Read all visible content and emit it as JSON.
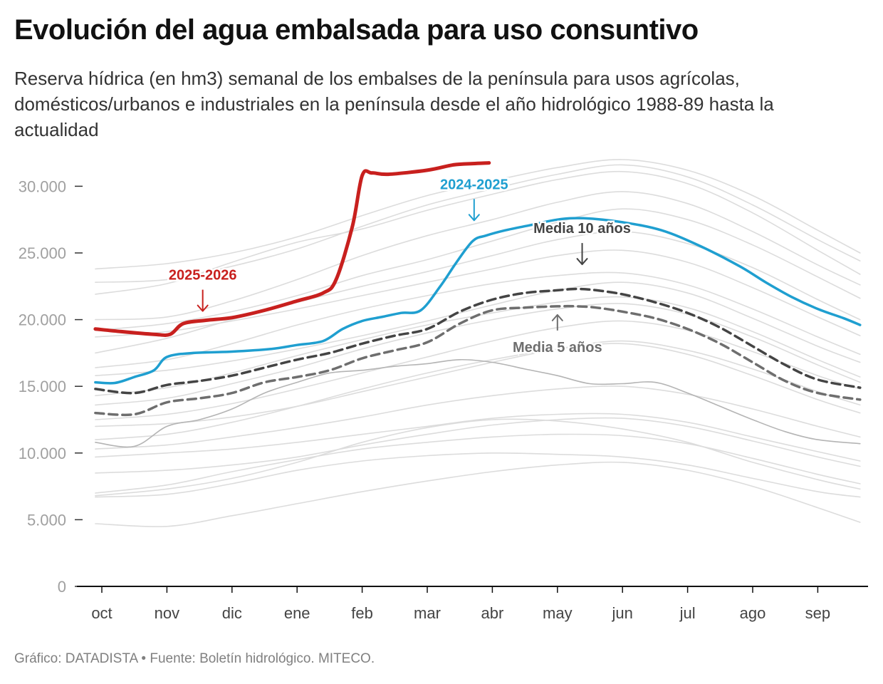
{
  "title": "Evolución del agua embalsada para uso consuntivo",
  "subtitle": "Reserva hídrica (en hm3) semanal de los embalses de la península para usos agrícolas, domésticos/urbanos e industriales en la península desde el año hidrológico 1988-89 hasta la actualidad",
  "source": "Gráfico: DATADISTA • Fuente: Boletín hidrológico. MITECO.",
  "colors": {
    "current": "#c8201e",
    "previous": "#1f9fd0",
    "media10": "#444444",
    "media5": "#6e6e6e",
    "history": "#dcdcdc",
    "history_dark": "#b4b4b4",
    "axis": "#111111"
  },
  "chart_data": {
    "type": "line",
    "title": "Evolución del agua embalsada para uso consuntivo",
    "xlabel": "",
    "ylabel": "",
    "x_unit": "meses del año hidrológico (oct = 0)",
    "xlim": [
      -0.2,
      11.65
    ],
    "ylim": [
      0,
      32000
    ],
    "yticks": [
      0,
      5000,
      10000,
      15000,
      20000,
      25000,
      30000
    ],
    "ytick_labels": [
      "0",
      "5.000",
      "10.000",
      "15.000",
      "20.000",
      "25.000",
      "30.000"
    ],
    "xticks": [
      0,
      1,
      2,
      3,
      4,
      5,
      6,
      7,
      8,
      9,
      10,
      11
    ],
    "xtick_labels": [
      "oct",
      "nov",
      "dic",
      "ene",
      "feb",
      "mar",
      "abr",
      "may",
      "jun",
      "jul",
      "ago",
      "sep"
    ],
    "grid": false,
    "legend": "none",
    "series": [
      {
        "name": "2025-2026",
        "role": "current",
        "x": [
          -0.1,
          0.3,
          0.8,
          1.05,
          1.25,
          1.6,
          2.0,
          2.5,
          3.0,
          3.4,
          3.6,
          3.85,
          4.0,
          4.15,
          4.4,
          5.0,
          5.4,
          5.7,
          5.95
        ],
        "y": [
          19300,
          19100,
          18900,
          18900,
          19700,
          19950,
          20150,
          20700,
          21400,
          22000,
          23000,
          27000,
          30800,
          31000,
          30900,
          31200,
          31600,
          31700,
          31750
        ]
      },
      {
        "name": "2024-2025",
        "role": "previous",
        "x": [
          -0.1,
          0.2,
          0.5,
          0.8,
          1.0,
          1.4,
          2.0,
          2.6,
          3.0,
          3.4,
          3.7,
          4.0,
          4.3,
          4.6,
          4.9,
          5.2,
          5.45,
          5.7,
          5.9,
          6.2,
          6.6,
          7.0,
          7.4,
          8.0,
          8.6,
          9.2,
          9.8,
          10.2,
          10.6,
          11.0,
          11.4,
          11.65
        ],
        "y": [
          15300,
          15250,
          15700,
          16200,
          17200,
          17500,
          17600,
          17800,
          18100,
          18400,
          19300,
          19900,
          20200,
          20500,
          20700,
          22500,
          24300,
          25900,
          26300,
          26700,
          27100,
          27500,
          27600,
          27300,
          26700,
          25500,
          24000,
          22800,
          21700,
          20800,
          20100,
          19600
        ]
      },
      {
        "name": "Media 10 años",
        "role": "media10",
        "x": [
          -0.1,
          0.5,
          1.0,
          1.5,
          2.0,
          2.5,
          3.0,
          3.5,
          4.0,
          4.5,
          5.0,
          5.5,
          6.0,
          6.5,
          7.0,
          7.3,
          7.6,
          8.0,
          8.5,
          9.0,
          9.5,
          10.0,
          10.5,
          11.0,
          11.65
        ],
        "y": [
          14800,
          14500,
          15100,
          15400,
          15800,
          16400,
          17000,
          17500,
          18200,
          18800,
          19300,
          20600,
          21500,
          22000,
          22200,
          22300,
          22200,
          21900,
          21300,
          20500,
          19400,
          18000,
          16600,
          15500,
          14900
        ]
      },
      {
        "name": "Media 5 años",
        "role": "media5",
        "x": [
          -0.1,
          0.5,
          1.0,
          1.5,
          2.0,
          2.5,
          3.0,
          3.5,
          4.0,
          4.5,
          5.0,
          5.5,
          6.0,
          6.5,
          7.0,
          7.3,
          7.6,
          8.0,
          8.5,
          9.0,
          9.5,
          10.0,
          10.5,
          11.0,
          11.65
        ],
        "y": [
          13000,
          12900,
          13800,
          14100,
          14500,
          15300,
          15700,
          16200,
          17100,
          17700,
          18300,
          19700,
          20700,
          20900,
          21000,
          21000,
          20900,
          20600,
          20100,
          19300,
          18200,
          16800,
          15400,
          14500,
          14000
        ]
      },
      {
        "role": "history",
        "x": [
          -0.1,
          1,
          2,
          3,
          4,
          5,
          6,
          7,
          8,
          9,
          10,
          11,
          11.65
        ],
        "y": [
          23800,
          24200,
          25000,
          26200,
          27800,
          29300,
          30400,
          31400,
          32000,
          31200,
          29300,
          26700,
          25000
        ]
      },
      {
        "role": "history",
        "x": [
          -0.1,
          1,
          2,
          3,
          4,
          5,
          6,
          7,
          8,
          9,
          10,
          11,
          11.65
        ],
        "y": [
          22800,
          23000,
          24000,
          25300,
          27000,
          28600,
          29800,
          30900,
          31600,
          30700,
          28600,
          26000,
          24400
        ]
      },
      {
        "role": "history",
        "x": [
          -0.1,
          1,
          2,
          3,
          4,
          5,
          6,
          7,
          8,
          9,
          10,
          11,
          11.65
        ],
        "y": [
          21900,
          22700,
          24300,
          25800,
          26800,
          28200,
          29400,
          30500,
          31100,
          30200,
          28000,
          25200,
          23400
        ]
      },
      {
        "role": "history",
        "x": [
          -0.1,
          1,
          2,
          3,
          4,
          5,
          6,
          7,
          8,
          9,
          10,
          11,
          11.65
        ],
        "y": [
          20000,
          20200,
          21400,
          23000,
          24800,
          26300,
          27500,
          28800,
          29600,
          28700,
          26600,
          24100,
          22600
        ]
      },
      {
        "role": "history",
        "x": [
          -0.1,
          1,
          2,
          3,
          4,
          5,
          6,
          7,
          8,
          9,
          10,
          11,
          11.65
        ],
        "y": [
          19200,
          19700,
          20600,
          21800,
          23300,
          24500,
          25900,
          27300,
          28300,
          27500,
          25600,
          23200,
          21600
        ]
      },
      {
        "role": "history",
        "x": [
          -0.1,
          1,
          2,
          3,
          4,
          5,
          6,
          7,
          8,
          9,
          10,
          11,
          11.65
        ],
        "y": [
          17500,
          18600,
          20000,
          21300,
          22500,
          23600,
          24800,
          26000,
          26600,
          25700,
          23900,
          21500,
          20000
        ]
      },
      {
        "role": "history",
        "x": [
          -0.1,
          1,
          2,
          3,
          4,
          5,
          6,
          7,
          8,
          9,
          10,
          11,
          11.65
        ],
        "y": [
          18700,
          19100,
          19900,
          20800,
          21800,
          22800,
          23800,
          24800,
          25200,
          24300,
          22400,
          20200,
          18800
        ]
      },
      {
        "role": "history",
        "x": [
          -0.1,
          1,
          2,
          3,
          4,
          5,
          6,
          7,
          8,
          9,
          10,
          11,
          11.65
        ],
        "y": [
          16400,
          17000,
          18200,
          19600,
          20800,
          21800,
          22700,
          23300,
          23500,
          22600,
          20800,
          18700,
          17400
        ]
      },
      {
        "role": "history",
        "x": [
          -0.1,
          1,
          2,
          3,
          4,
          5,
          6,
          7,
          8,
          9,
          10,
          11,
          11.65
        ],
        "y": [
          15800,
          16200,
          16900,
          17800,
          18800,
          19900,
          21100,
          22200,
          22800,
          22000,
          20100,
          18000,
          16800
        ]
      },
      {
        "role": "history",
        "x": [
          -0.1,
          1,
          2,
          3,
          4,
          5,
          6,
          7,
          8,
          9,
          10,
          11,
          11.65
        ],
        "y": [
          14300,
          14900,
          16000,
          17300,
          18500,
          19600,
          20500,
          21300,
          21700,
          20900,
          19100,
          17000,
          15700
        ]
      },
      {
        "role": "history",
        "x": [
          -0.1,
          1,
          2,
          3,
          4,
          5,
          6,
          7,
          8,
          9,
          10,
          11,
          11.65
        ],
        "y": [
          13600,
          14100,
          15200,
          16400,
          17800,
          19000,
          20000,
          20800,
          21200,
          20400,
          18700,
          16600,
          15300
        ]
      },
      {
        "role": "history",
        "x": [
          -0.1,
          1,
          2,
          3,
          4,
          5,
          6,
          7,
          8,
          9,
          10,
          11,
          11.65
        ],
        "y": [
          12500,
          12900,
          13700,
          14800,
          16000,
          17200,
          18400,
          19400,
          19900,
          19200,
          17600,
          15800,
          14800
        ]
      },
      {
        "role": "history",
        "x": [
          -0.1,
          1,
          2,
          3,
          4,
          5,
          6,
          7,
          8,
          9,
          10,
          11,
          11.65
        ],
        "y": [
          12000,
          12200,
          12700,
          13500,
          14600,
          15700,
          16800,
          17800,
          18400,
          17700,
          16300,
          14600,
          13600
        ]
      },
      {
        "role": "history",
        "x": [
          -0.1,
          1,
          2,
          3,
          4,
          5,
          6,
          7,
          8,
          9,
          10,
          11,
          11.65
        ],
        "y": [
          11000,
          11400,
          12300,
          13500,
          14800,
          16000,
          17000,
          17800,
          18200,
          17400,
          15800,
          14000,
          13000
        ]
      },
      {
        "role": "history",
        "x": [
          -0.1,
          1,
          2,
          3,
          4,
          5,
          6,
          7,
          8,
          9,
          10,
          11,
          11.65
        ],
        "y": [
          10300,
          10600,
          11200,
          11900,
          12700,
          13600,
          14300,
          14800,
          15000,
          14400,
          13300,
          12000,
          11200
        ]
      },
      {
        "role": "history",
        "x": [
          -0.1,
          1,
          2,
          3,
          4,
          5,
          6,
          7,
          8,
          9,
          10,
          11,
          11.65
        ],
        "y": [
          9700,
          10000,
          10300,
          10800,
          11400,
          12000,
          12600,
          12900,
          12900,
          12300,
          11200,
          10100,
          9400
        ]
      },
      {
        "role": "history",
        "x": [
          -0.1,
          1,
          2,
          3,
          4,
          5,
          6,
          7,
          8,
          9,
          10,
          11,
          11.65
        ],
        "y": [
          8500,
          8700,
          9100,
          9700,
          10600,
          11400,
          12100,
          12500,
          12600,
          12000,
          10900,
          9700,
          9000
        ]
      },
      {
        "role": "history",
        "x": [
          -0.1,
          1,
          2,
          3,
          4,
          5,
          6,
          7,
          8,
          9,
          10,
          11,
          11.65
        ],
        "y": [
          7000,
          7600,
          8600,
          9500,
          10300,
          10800,
          11200,
          11400,
          11300,
          10700,
          9600,
          8400,
          7700
        ]
      },
      {
        "role": "history",
        "x": [
          -0.1,
          1,
          2,
          3,
          4,
          5,
          6,
          7,
          8,
          9,
          10,
          11,
          11.65
        ],
        "y": [
          6700,
          6900,
          7700,
          8700,
          9400,
          9800,
          10000,
          9900,
          9700,
          9100,
          8100,
          7100,
          6700
        ]
      },
      {
        "role": "history",
        "x": [
          -0.1,
          1,
          2,
          3,
          4,
          5,
          6,
          7,
          8,
          9,
          10,
          11,
          11.65
        ],
        "y": [
          6800,
          7300,
          8100,
          9300,
          10800,
          11900,
          12500,
          12400,
          11800,
          10800,
          9300,
          8000,
          7300
        ]
      },
      {
        "role": "history",
        "x": [
          -0.1,
          1,
          2,
          3,
          4,
          5,
          6,
          7,
          8,
          9,
          10,
          11,
          11.65
        ],
        "y": [
          4700,
          4500,
          5300,
          6200,
          7100,
          7900,
          8600,
          9100,
          9300,
          8700,
          7500,
          5900,
          4800
        ]
      },
      {
        "role": "history_dark",
        "x": [
          -0.1,
          0.5,
          1,
          1.5,
          2,
          2.5,
          3,
          3.5,
          4,
          4.5,
          5,
          5.5,
          6,
          6.5,
          7,
          7.5,
          8,
          8.5,
          9,
          9.5,
          10,
          10.5,
          11,
          11.65
        ],
        "y": [
          10800,
          10500,
          12000,
          12500,
          13300,
          14500,
          15300,
          16000,
          16200,
          16500,
          16700,
          17000,
          16800,
          16300,
          15800,
          15200,
          15200,
          15300,
          14500,
          13500,
          12500,
          11600,
          11000,
          10700
        ]
      }
    ],
    "annotations": [
      {
        "text": "2025-2026",
        "target": "2025-2026",
        "x": 1.55,
        "y": 20000,
        "arrow": "down"
      },
      {
        "text": "2024-2025",
        "target": "2024-2025",
        "x": 5.72,
        "y": 26800,
        "arrow": "down"
      },
      {
        "text": "Media 10 años",
        "target": "Media 10 años",
        "x": 7.38,
        "y": 23500,
        "arrow": "down"
      },
      {
        "text": "Media 5 años",
        "target": "Media 5 años",
        "x": 7.0,
        "y": 21000,
        "arrow": "up"
      }
    ]
  }
}
